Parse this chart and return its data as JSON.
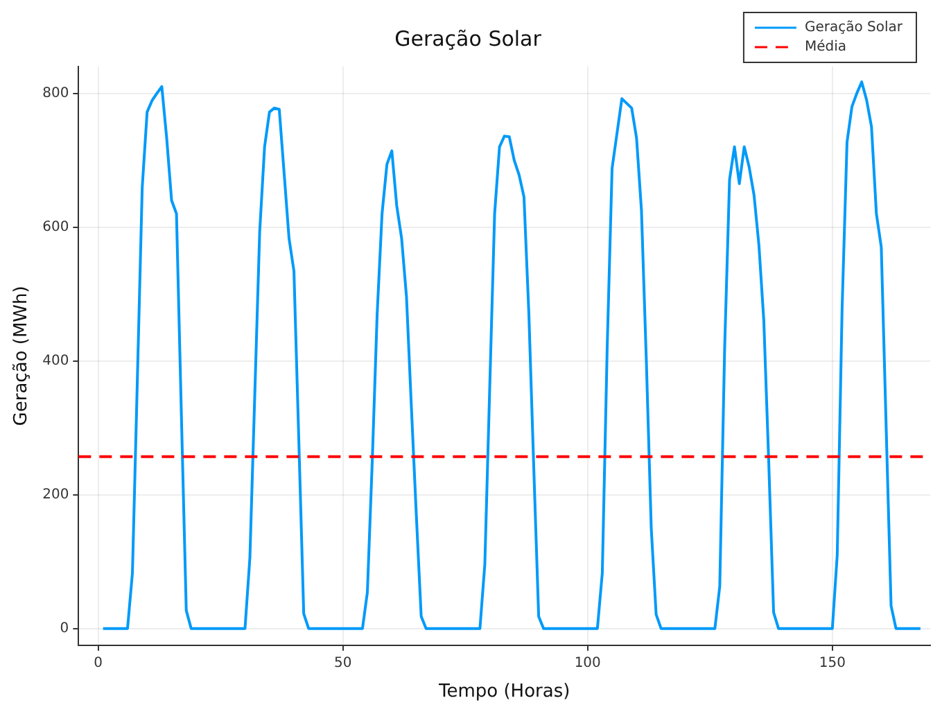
{
  "chart_data": {
    "type": "line",
    "title": "Geração Solar",
    "xlabel": "Tempo (Horas)",
    "ylabel": "Geração (MWh)",
    "x": [
      1,
      2,
      3,
      4,
      5,
      6,
      7,
      8,
      9,
      10,
      11,
      12,
      13,
      14,
      15,
      16,
      17,
      18,
      19,
      20,
      21,
      22,
      23,
      24,
      25,
      26,
      27,
      28,
      29,
      30,
      31,
      32,
      33,
      34,
      35,
      36,
      37,
      38,
      39,
      40,
      41,
      42,
      43,
      44,
      45,
      46,
      47,
      48,
      49,
      50,
      51,
      52,
      53,
      54,
      55,
      56,
      57,
      58,
      59,
      60,
      61,
      62,
      63,
      64,
      65,
      66,
      67,
      68,
      69,
      70,
      71,
      72,
      73,
      74,
      75,
      76,
      77,
      78,
      79,
      80,
      81,
      82,
      83,
      84,
      85,
      86,
      87,
      88,
      89,
      90,
      91,
      92,
      93,
      94,
      95,
      96,
      97,
      98,
      99,
      100,
      101,
      102,
      103,
      104,
      105,
      106,
      107,
      108,
      109,
      110,
      111,
      112,
      113,
      114,
      115,
      116,
      117,
      118,
      119,
      120,
      121,
      122,
      123,
      124,
      125,
      126,
      127,
      128,
      129,
      130,
      131,
      132,
      133,
      134,
      135,
      136,
      137,
      138,
      139,
      140,
      141,
      142,
      143,
      144,
      145,
      146,
      147,
      148,
      149,
      150,
      151,
      152,
      153,
      154,
      155,
      156,
      157,
      158,
      159,
      160,
      161,
      162,
      163,
      164,
      165,
      166,
      167,
      168
    ],
    "series": [
      {
        "name": "Geração Solar",
        "color": "#009af9",
        "values": [
          0,
          0,
          0,
          0,
          0,
          0,
          83,
          370,
          659,
          772,
          789,
          800,
          810,
          733,
          640,
          620,
          320,
          27,
          0,
          0,
          0,
          0,
          0,
          0,
          0,
          0,
          0,
          0,
          0,
          0,
          106,
          350,
          593,
          720,
          772,
          778,
          776,
          680,
          583,
          534,
          280,
          22,
          0,
          0,
          0,
          0,
          0,
          0,
          0,
          0,
          0,
          0,
          0,
          0,
          54,
          250,
          470,
          620,
          694,
          714,
          632,
          583,
          495,
          330,
          170,
          18,
          0,
          0,
          0,
          0,
          0,
          0,
          0,
          0,
          0,
          0,
          0,
          0,
          96,
          360,
          620,
          720,
          736,
          735,
          700,
          678,
          645,
          470,
          240,
          18,
          0,
          0,
          0,
          0,
          0,
          0,
          0,
          0,
          0,
          0,
          0,
          0,
          83,
          420,
          688,
          740,
          792,
          785,
          778,
          733,
          625,
          400,
          150,
          21,
          0,
          0,
          0,
          0,
          0,
          0,
          0,
          0,
          0,
          0,
          0,
          0,
          63,
          420,
          671,
          720,
          665,
          720,
          690,
          648,
          573,
          460,
          250,
          24,
          0,
          0,
          0,
          0,
          0,
          0,
          0,
          0,
          0,
          0,
          0,
          0,
          110,
          480,
          727,
          780,
          800,
          817,
          790,
          750,
          620,
          570,
          300,
          34,
          0,
          0,
          0,
          0,
          0,
          0
        ]
      }
    ],
    "ref_lines": [
      {
        "axis": "y",
        "value": 257,
        "label": "Média",
        "color": "#ff0000",
        "line_style": "dashed"
      }
    ],
    "xlim": [
      -4,
      170
    ],
    "xticks": [
      0,
      50,
      100,
      150
    ],
    "ylim": [
      -25,
      840
    ],
    "yticks": [
      0,
      200,
      400,
      600,
      800
    ],
    "grid": true,
    "legend": "top right",
    "marker": "none",
    "line_style": "solid"
  }
}
